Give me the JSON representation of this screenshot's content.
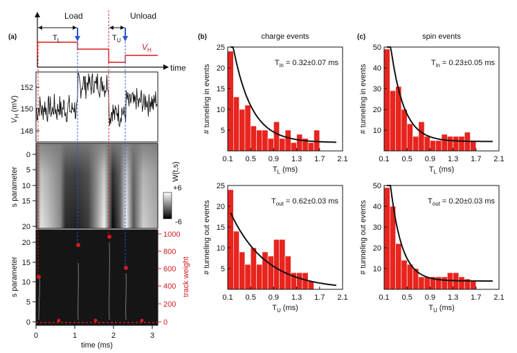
{
  "panel_labels": {
    "a": "(a)",
    "b": "(b)",
    "c": "(c)"
  },
  "pulse": {
    "load": "Load",
    "unload": "Unload",
    "tl": "T",
    "tl_sub": "L",
    "tu": "T",
    "tu_sub": "U",
    "vh": "V",
    "vh_sub": "H",
    "time": "time"
  },
  "trace": {
    "ylabel_v": "V",
    "ylabel_sub": "H",
    "ylabel_unit": " (mV)",
    "yticks": [
      "152",
      "150",
      "148"
    ]
  },
  "wavelet": {
    "ylabel": "s parameter",
    "yticks": [
      "0",
      "5",
      "10",
      "15",
      "20"
    ],
    "cb_label": "W(t,s)",
    "cb_max": "+6",
    "cb_min": "-6"
  },
  "track": {
    "ylabel": "s parameter",
    "ylabel_right": "track weight",
    "yticks": [
      "20",
      "15",
      "10",
      "5",
      "0"
    ],
    "yticks_right": [
      "1000",
      "800",
      "600",
      "400",
      "200",
      "0"
    ],
    "xticks": [
      "0",
      "1",
      "2",
      "3"
    ],
    "xlabel": "time (ms)"
  },
  "colors": {
    "red": "#d7191c",
    "blue": "#2b55d6",
    "bar": "#e8241e"
  },
  "chart_data": [
    {
      "type": "bar",
      "id": "b-top",
      "title": "charge events",
      "ylabel": "# tunneling in events",
      "xlabel": "T",
      "xlabel_sub": "L",
      "xlabel_unit": " (ms)",
      "xlim": [
        0.1,
        2.1
      ],
      "ylim": [
        0,
        25
      ],
      "bin_width": 0.1,
      "xticks": [
        "0.1",
        "0.5",
        "0.9",
        "1.3",
        "1.7",
        "2.1"
      ],
      "yticks": [
        "5",
        "10",
        "15",
        "20",
        "25"
      ],
      "bin_starts": [
        0.1,
        0.2,
        0.3,
        0.4,
        0.5,
        0.6,
        0.7,
        0.8,
        0.9,
        1.0,
        1.1,
        1.2,
        1.3,
        1.4,
        1.5,
        1.6
      ],
      "values": [
        24,
        13,
        10,
        11,
        6,
        5,
        5,
        3,
        7,
        3,
        5,
        2,
        4,
        3,
        2,
        5
      ],
      "fit_label": "T",
      "fit_sub": "in",
      "fit_value": " = 0.32±0.07 ms",
      "fit": {
        "a": 31,
        "tau": 0.32,
        "c": 2.0
      }
    },
    {
      "type": "bar",
      "id": "b-bot",
      "title": "",
      "ylabel": "# tunneling out events",
      "xlabel": "T",
      "xlabel_sub": "U",
      "xlabel_unit": " (ms)",
      "xlim": [
        0.1,
        2.1
      ],
      "ylim": [
        0,
        25
      ],
      "bin_width": 0.1,
      "xticks": [
        "0.1",
        "0.5",
        "0.9",
        "1.3",
        "1.7",
        "2.1"
      ],
      "yticks": [
        "5",
        "10",
        "15",
        "20",
        "25"
      ],
      "bin_starts": [
        0.1,
        0.2,
        0.3,
        0.4,
        0.5,
        0.6,
        0.7,
        0.8,
        0.9,
        1.0,
        1.1,
        1.2,
        1.3,
        1.4,
        1.5
      ],
      "values": [
        24,
        14,
        9,
        6,
        10,
        6,
        9,
        8,
        12,
        12,
        8,
        4,
        4,
        4,
        2
      ],
      "fit_label": "T",
      "fit_sub": "out",
      "fit_value": " = 0.62±0.03 ms",
      "fit": {
        "a": 20,
        "tau": 0.62,
        "c": 0.0
      }
    },
    {
      "type": "bar",
      "id": "c-top",
      "title": "spin events",
      "ylabel": "# tunneling in events",
      "xlabel": "T",
      "xlabel_sub": "L",
      "xlabel_unit": " (ms)",
      "xlim": [
        0.1,
        2.1
      ],
      "ylim": [
        0,
        50
      ],
      "bin_width": 0.1,
      "xticks": [
        "0.1",
        "0.5",
        "0.9",
        "1.3",
        "1.7",
        "2.1"
      ],
      "yticks": [
        "10",
        "20",
        "30",
        "40",
        "50"
      ],
      "bin_starts": [
        0.1,
        0.2,
        0.3,
        0.4,
        0.5,
        0.6,
        0.7,
        0.8,
        0.9,
        1.0,
        1.1,
        1.2,
        1.3,
        1.4,
        1.5,
        1.6
      ],
      "values": [
        49,
        29,
        31,
        20,
        13,
        7,
        14,
        7,
        5,
        5,
        8,
        7,
        7,
        7,
        9,
        5
      ],
      "fit_label": "T",
      "fit_sub": "in",
      "fit_value": " = 0.23±0.05 ms",
      "fit": {
        "a": 75,
        "tau": 0.23,
        "c": 4.5
      }
    },
    {
      "type": "bar",
      "id": "c-bot",
      "title": "",
      "ylabel": "# tunneling out events",
      "xlabel": "T",
      "xlabel_sub": "U",
      "xlabel_unit": " (ms)",
      "xlim": [
        0.1,
        2.1
      ],
      "ylim": [
        0,
        50
      ],
      "bin_width": 0.1,
      "xticks": [
        "0.1",
        "0.5",
        "0.9",
        "1.3",
        "1.7",
        "2.1"
      ],
      "yticks": [
        "10",
        "20",
        "30",
        "40",
        "50"
      ],
      "bin_starts": [
        0.1,
        0.2,
        0.3,
        0.4,
        0.5,
        0.6,
        0.7,
        0.8,
        0.9,
        1.0,
        1.1,
        1.2,
        1.3,
        1.4,
        1.5,
        1.6
      ],
      "values": [
        49,
        40,
        22,
        14,
        12,
        10,
        6,
        6,
        6,
        6,
        6,
        8,
        8,
        6,
        5,
        4
      ],
      "fit_label": "T",
      "fit_sub": "out",
      "fit_value": " = 0.20±0.03 ms",
      "fit": {
        "a": 80,
        "tau": 0.2,
        "c": 4.0
      }
    }
  ]
}
